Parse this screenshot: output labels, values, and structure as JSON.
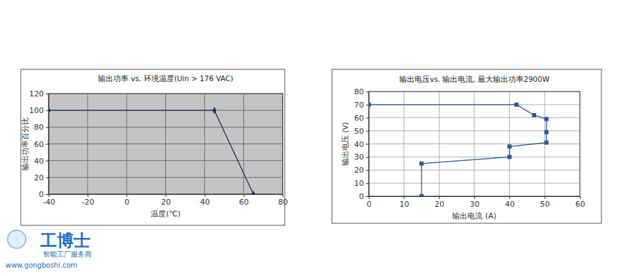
{
  "chart_data": [
    {
      "type": "line",
      "title": "输出功率 vs. 环境温度(Uin > 176 VAC)",
      "x_label": "温度(℃)",
      "y_label": "输出功率百分比",
      "x": [
        -40,
        45,
        65
      ],
      "values": [
        100,
        100,
        0
      ],
      "color": "#1f2f5e",
      "marker": "diamond",
      "xlim": [
        -40,
        80
      ],
      "xticks": [
        -40,
        -20,
        0,
        20,
        40,
        60,
        80
      ],
      "ylim": [
        0,
        120
      ],
      "yticks": [
        0,
        20,
        40,
        60,
        80,
        100,
        120
      ],
      "grid": true
    },
    {
      "type": "line",
      "title": "输出电压vs. 输出电流, 最大输出功率2900W",
      "x_label": "输出电流 (A)",
      "y_label": "输出电压 (V)",
      "x": [
        0,
        42,
        47,
        50.5,
        50.5,
        50.5,
        40,
        40,
        15,
        15
      ],
      "values": [
        70,
        70,
        62,
        59,
        49,
        41,
        38,
        30,
        25,
        0
      ],
      "color": "#2a5a94",
      "marker": "square",
      "xlim": [
        0,
        60
      ],
      "xticks": [
        0,
        10,
        20,
        30,
        40,
        50,
        60
      ],
      "ylim": [
        0,
        80
      ],
      "yticks": [
        0,
        10,
        20,
        30,
        40,
        50,
        60,
        70,
        80
      ],
      "grid": true
    }
  ],
  "watermark": {
    "brand": "工博士",
    "slogan": "智能工厂服务商",
    "url": "www.gongboshi.com"
  }
}
